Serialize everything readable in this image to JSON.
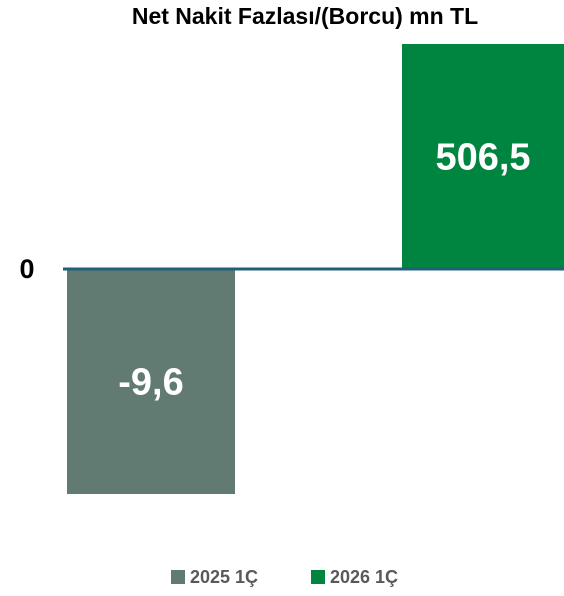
{
  "chart_data": {
    "type": "bar",
    "title": "Net Nakit Fazlası/(Borcu) mn TL",
    "yticks": [
      0
    ],
    "series": [
      {
        "name": "2025 1Ç",
        "color": "#617a72",
        "values": [
          -9.6
        ],
        "value_labels": [
          "-9,6"
        ]
      },
      {
        "name": "2026 1Ç",
        "color": "#008541",
        "values": [
          506.5
        ],
        "value_labels": [
          "506,5"
        ]
      }
    ]
  }
}
